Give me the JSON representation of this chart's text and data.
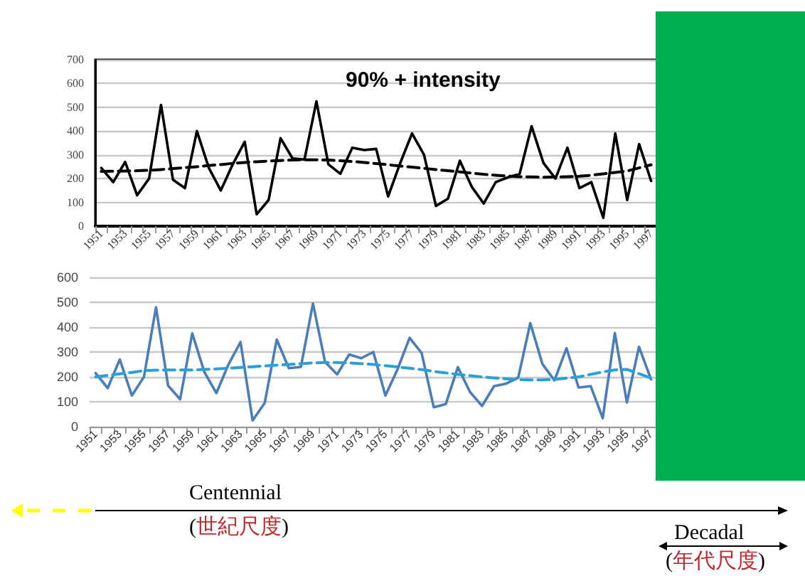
{
  "chart_data": [
    {
      "type": "line",
      "title": "90% + intensity",
      "categories": [
        "1951",
        null,
        "1953",
        null,
        "1955",
        null,
        "1957",
        null,
        "1959",
        null,
        "1961",
        null,
        "1963",
        null,
        "1965",
        null,
        "1967",
        null,
        "1969",
        null,
        "1971",
        null,
        "1973",
        null,
        "1975",
        null,
        "1977",
        null,
        "1979",
        null,
        "1981",
        null,
        "1983",
        null,
        "1985",
        null,
        "1987",
        null,
        "1989",
        null,
        "1991",
        null,
        "1993",
        null,
        "1995",
        null,
        "1997"
      ],
      "series": [
        {
          "color": "#000000",
          "values": [
            245,
            185,
            270,
            130,
            200,
            510,
            195,
            160,
            400,
            245,
            150,
            260,
            355,
            50,
            110,
            370,
            285,
            280,
            525,
            260,
            220,
            330,
            320,
            325,
            125,
            264,
            390,
            300,
            85,
            115,
            275,
            165,
            95,
            185,
            205,
            220,
            420,
            265,
            200,
            330,
            160,
            185,
            35,
            390,
            110,
            345,
            190
          ]
        },
        {
          "color": "#000000",
          "line_style": "dashed",
          "values": [
            230,
            231,
            232,
            233,
            235,
            238,
            242,
            246,
            250,
            255,
            259,
            264,
            268,
            271,
            274,
            276,
            278,
            279,
            279,
            278,
            275,
            272,
            268,
            263,
            258,
            253,
            248,
            243,
            238,
            233,
            228,
            223,
            218,
            214,
            211,
            208,
            207,
            206,
            207,
            208,
            210,
            214,
            220,
            226,
            232,
            245,
            258
          ]
        }
      ],
      "ylim": [
        0,
        700
      ],
      "yticks": [
        0,
        100,
        200,
        300,
        400,
        500,
        600,
        700
      ],
      "grid": "y",
      "marker": "none",
      "line_style": "solid"
    },
    {
      "type": "line",
      "categories": [
        "1951",
        null,
        "1953",
        null,
        "1955",
        null,
        "1957",
        null,
        "1959",
        null,
        "1961",
        null,
        "1963",
        null,
        "1965",
        null,
        "1967",
        null,
        "1969",
        null,
        "1971",
        null,
        "1973",
        null,
        "1975",
        null,
        "1977",
        null,
        "1979",
        null,
        "1981",
        null,
        "1983",
        null,
        "1985",
        null,
        "1987",
        null,
        "1989",
        null,
        "1991",
        null,
        "1993",
        null,
        "1995",
        null,
        "1997"
      ],
      "series": [
        {
          "color": "#4a7ebb",
          "values": [
            215,
            155,
            270,
            125,
            200,
            480,
            165,
            110,
            375,
            220,
            135,
            250,
            340,
            25,
            95,
            350,
            235,
            240,
            495,
            260,
            210,
            290,
            275,
            300,
            125,
            230,
            357,
            296,
            78,
            91,
            239,
            140,
            83,
            163,
            173,
            197,
            416,
            252,
            186,
            315,
            157,
            163,
            34,
            376,
            97,
            321,
            190
          ]
        },
        {
          "color": "#2aa0d8",
          "line_style": "dashed",
          "values": [
            200,
            206,
            212,
            218,
            225,
            227,
            228,
            228,
            228,
            230,
            232,
            235,
            238,
            241,
            244,
            247,
            250,
            253,
            256,
            258,
            258,
            256,
            253,
            250,
            245,
            240,
            235,
            229,
            222,
            216,
            210,
            205,
            200,
            196,
            192,
            189,
            188,
            188,
            190,
            195,
            200,
            210,
            220,
            228,
            230,
            213,
            195
          ]
        }
      ],
      "ylim": [
        0,
        600
      ],
      "yticks": [
        0,
        100,
        200,
        300,
        400,
        500,
        600
      ],
      "grid": "y",
      "marker": "none",
      "line_style": "solid",
      "annotations": [
        "Centennial",
        "(世紀尺度)",
        "Decadal",
        "(年代尺度)"
      ]
    }
  ]
}
